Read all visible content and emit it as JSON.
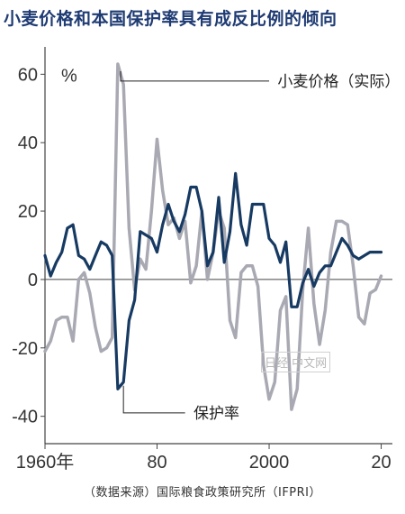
{
  "title": "小麦价格和本国保护率具有成反比例的倾向",
  "source": "（数据来源）国际粮食政策研究所（IFPRI）",
  "watermark": "日经 中文网",
  "chart_data": {
    "type": "line",
    "unit_label": "%",
    "x": [
      1960,
      1961,
      1962,
      1963,
      1964,
      1965,
      1966,
      1967,
      1968,
      1969,
      1970,
      1971,
      1972,
      1973,
      1974,
      1975,
      1976,
      1977,
      1978,
      1979,
      1980,
      1981,
      1982,
      1983,
      1984,
      1985,
      1986,
      1987,
      1988,
      1989,
      1990,
      1991,
      1992,
      1993,
      1994,
      1995,
      1996,
      1997,
      1998,
      1999,
      2000,
      2001,
      2002,
      2003,
      2004,
      2005,
      2006,
      2007,
      2008,
      2009,
      2010,
      2011,
      2012,
      2013,
      2014,
      2015,
      2016,
      2017,
      2018,
      2019,
      2020
    ],
    "x_tick_labels": [
      "1960年",
      "80",
      "2000",
      "20"
    ],
    "x_tick_values": [
      1960,
      1980,
      2000,
      2020
    ],
    "y_tick_values": [
      60,
      40,
      20,
      0,
      -20,
      -40
    ],
    "ylim": [
      -48,
      68
    ],
    "xlim": [
      1960,
      2022
    ],
    "series": [
      {
        "name": "小麦价格（实际）",
        "color": "#a9a9b3",
        "values": [
          -21,
          -18,
          -12,
          -11,
          -11,
          -18,
          0,
          2,
          -4,
          -14,
          -21,
          -20,
          -17,
          63,
          57,
          15,
          -3,
          6,
          3,
          20,
          41,
          26,
          16,
          18,
          12,
          17,
          -1,
          4,
          20,
          0,
          8,
          20,
          15,
          -12,
          -17,
          2,
          4,
          4,
          -2,
          -25,
          -35,
          -30,
          -9,
          -5,
          -38,
          -32,
          -3,
          15,
          -7,
          -19,
          -9,
          8,
          17,
          17,
          16,
          4,
          -11,
          -13,
          -4,
          -3,
          1
        ],
        "annotation": "小麦价格（实际）"
      },
      {
        "name": "保护率",
        "color": "#173a63",
        "values": [
          7,
          1,
          5,
          8,
          15,
          16,
          7,
          6,
          3,
          7,
          11,
          10,
          7,
          -32,
          -30,
          -12,
          -6,
          14,
          13,
          12,
          8,
          16,
          22,
          17,
          14,
          19,
          27,
          27,
          20,
          4,
          8,
          24,
          5,
          14,
          31,
          16,
          10,
          22,
          22,
          22,
          12,
          10,
          5,
          11,
          -8,
          -8,
          -1,
          3,
          -2,
          2,
          4,
          4,
          8,
          12,
          10,
          7,
          6,
          7,
          8,
          8,
          8
        ],
        "annotation": "保护率"
      }
    ]
  }
}
